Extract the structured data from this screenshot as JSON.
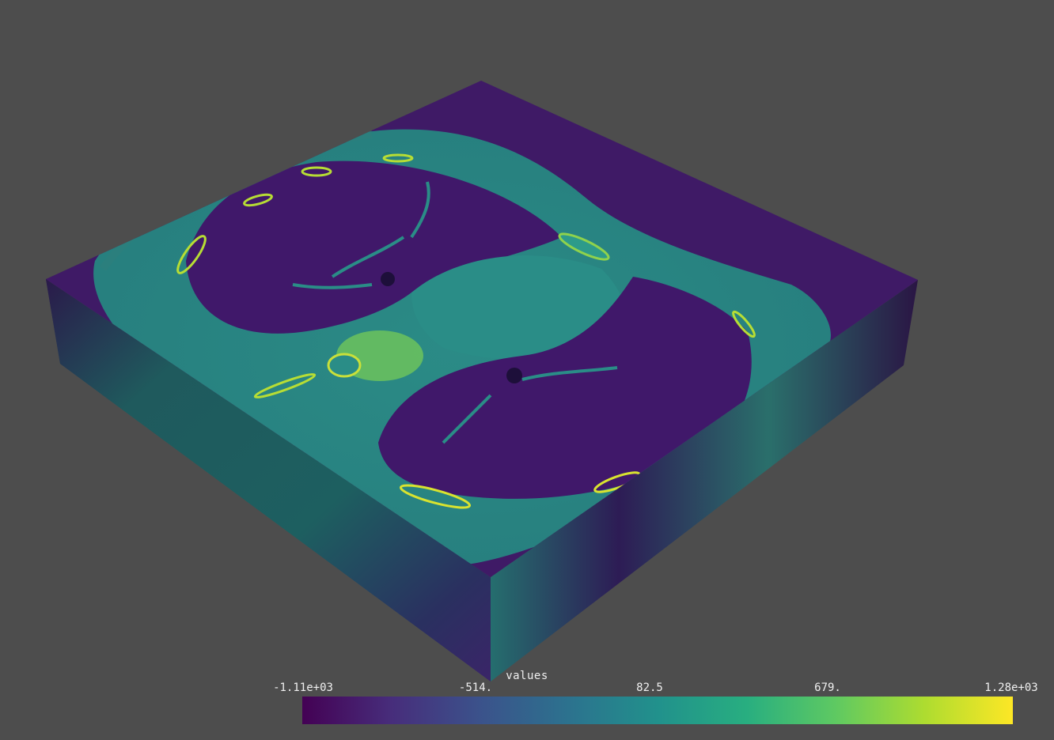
{
  "colormap": {
    "name": "viridis",
    "stops": [
      "#440154",
      "#472d7b",
      "#3b528b",
      "#2c728e",
      "#21918c",
      "#28ae80",
      "#5ec962",
      "#addc30",
      "#fde725"
    ]
  },
  "scalar_bar": {
    "title": "values",
    "ticks": [
      "-1.11e+03",
      "-514.",
      "82.5",
      "679.",
      "1.28e+03"
    ]
  },
  "scene": {
    "background": "#4d4d4d",
    "object": "ct-volume-slab"
  }
}
